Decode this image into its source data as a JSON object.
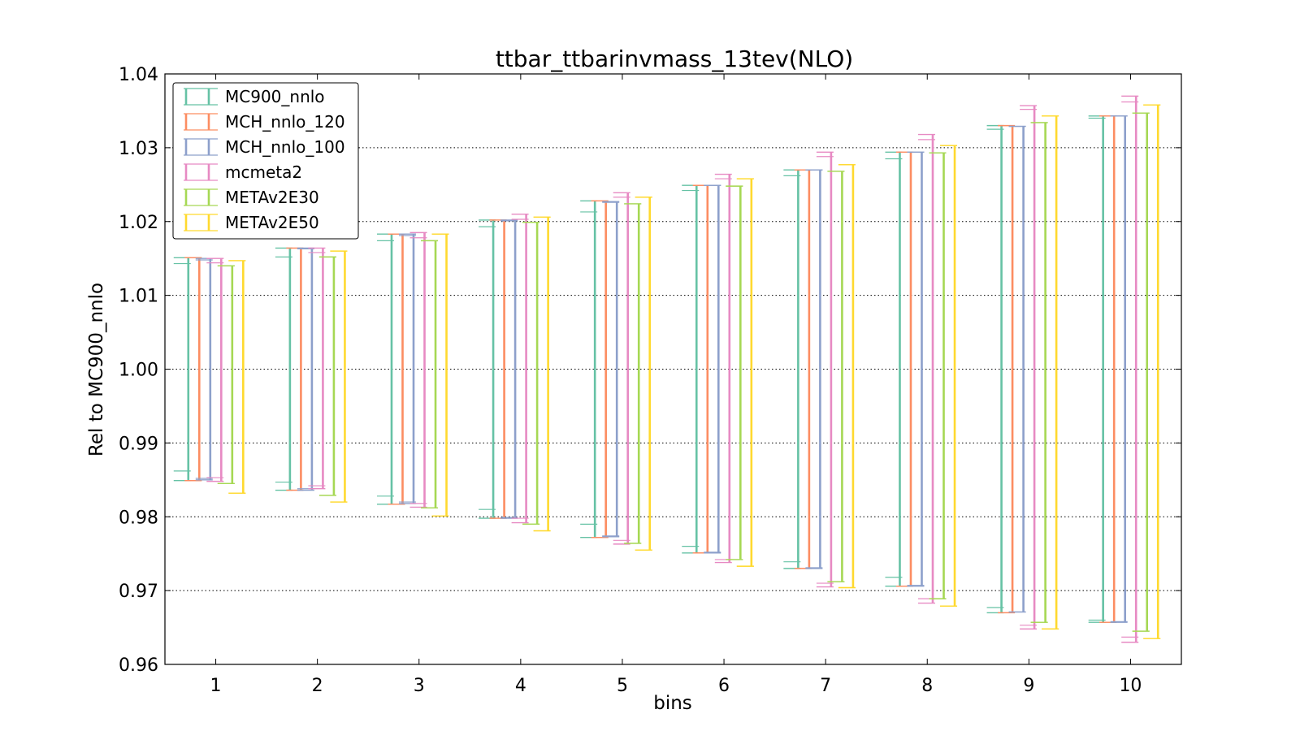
{
  "chart_data": {
    "type": "errorbar",
    "title": "ttbar_ttbarinvmass_13tev(NLO)",
    "xlabel": "bins",
    "ylabel": "Rel to MC900_nnlo",
    "x": [
      1,
      2,
      3,
      4,
      5,
      6,
      7,
      8,
      9,
      10
    ],
    "xlim": [
      0.5,
      10.5
    ],
    "ylim": [
      0.96,
      1.04
    ],
    "yticks": [
      "0.96",
      "0.97",
      "0.98",
      "0.99",
      "1.00",
      "1.01",
      "1.02",
      "1.03",
      "1.04"
    ],
    "grid": "horizontal dotted",
    "legend_position": "top-left",
    "series": [
      {
        "name": "MC900_nnlo",
        "color": "#66c2a5",
        "upper": [
          1.0151,
          1.0164,
          1.0183,
          1.0202,
          1.0228,
          1.0249,
          1.027,
          1.0294,
          1.033,
          1.0343
        ],
        "lower": [
          0.9849,
          0.9836,
          0.9817,
          0.9798,
          0.9772,
          0.9751,
          0.973,
          0.9706,
          0.967,
          0.9657
        ],
        "inner_upper": [
          1.0143,
          1.0152,
          1.0174,
          1.0193,
          1.0213,
          1.0242,
          1.0262,
          1.0285,
          1.0325,
          1.034
        ],
        "inner_lower": [
          0.9862,
          0.9847,
          0.9828,
          0.981,
          0.979,
          0.976,
          0.9739,
          0.9718,
          0.9677,
          0.966
        ]
      },
      {
        "name": "MCH_nnlo_120",
        "color": "#fc8d62",
        "upper": [
          1.0151,
          1.0164,
          1.0183,
          1.0202,
          1.0228,
          1.0249,
          1.027,
          1.0294,
          1.033,
          1.0343
        ],
        "lower": [
          0.9849,
          0.9836,
          0.9817,
          0.9798,
          0.9772,
          0.9751,
          0.973,
          0.9706,
          0.967,
          0.9657
        ],
        "inner_upper": [
          1.0151,
          1.0164,
          1.0183,
          1.0202,
          1.0228,
          1.0249,
          1.027,
          1.0294,
          1.033,
          1.0343
        ],
        "inner_lower": [
          0.9849,
          0.9836,
          0.9817,
          0.9798,
          0.9772,
          0.9751,
          0.973,
          0.9706,
          0.967,
          0.9657
        ]
      },
      {
        "name": "MCH_nnlo_100",
        "color": "#8da0cb",
        "upper": [
          1.015,
          1.0164,
          1.0183,
          1.0202,
          1.0227,
          1.0249,
          1.027,
          1.0294,
          1.0329,
          1.0343
        ],
        "lower": [
          0.985,
          0.9836,
          0.9818,
          0.9798,
          0.9773,
          0.9751,
          0.973,
          0.9706,
          0.9671,
          0.9657
        ],
        "inner_upper": [
          1.0148,
          1.0163,
          1.0181,
          1.0201,
          1.0226,
          1.0249,
          1.027,
          1.0294,
          1.0329,
          1.0343
        ],
        "inner_lower": [
          0.9852,
          0.9838,
          0.982,
          0.9799,
          0.9774,
          0.9752,
          0.9731,
          0.9707,
          0.9671,
          0.9658
        ]
      },
      {
        "name": "mcmeta2",
        "color": "#e78ac3",
        "upper": [
          1.015,
          1.0164,
          1.0185,
          1.021,
          1.0239,
          1.0264,
          1.0294,
          1.0318,
          1.0357,
          1.037
        ],
        "lower": [
          0.9848,
          0.9838,
          0.9813,
          0.9792,
          0.9763,
          0.9738,
          0.9705,
          0.9683,
          0.9648,
          0.963
        ],
        "inner_upper": [
          1.0144,
          1.0158,
          1.0178,
          1.0203,
          1.0233,
          1.0258,
          1.0288,
          1.0311,
          1.0352,
          1.0362
        ],
        "inner_lower": [
          0.9853,
          0.9842,
          0.9818,
          0.9798,
          0.9768,
          0.9742,
          0.971,
          0.9689,
          0.9653,
          0.9637
        ]
      },
      {
        "name": "METAv2E30",
        "color": "#a6d854",
        "upper": [
          1.014,
          1.0152,
          1.0174,
          1.0199,
          1.0224,
          1.0248,
          1.0268,
          1.0293,
          1.0334,
          1.0347
        ],
        "lower": [
          0.9845,
          0.9829,
          0.9812,
          0.979,
          0.9764,
          0.9742,
          0.9712,
          0.9689,
          0.9657,
          0.9645
        ],
        "inner_upper": [
          1.014,
          1.0152,
          1.0174,
          1.0199,
          1.0224,
          1.0248,
          1.0268,
          1.0293,
          1.0334,
          1.0347
        ],
        "inner_lower": [
          0.9845,
          0.9829,
          0.9812,
          0.979,
          0.9764,
          0.9742,
          0.9712,
          0.9689,
          0.9657,
          0.9645
        ]
      },
      {
        "name": "METAv2E50",
        "color": "#ffd92f",
        "upper": [
          1.0147,
          1.016,
          1.0183,
          1.0206,
          1.0233,
          1.0258,
          1.0277,
          1.0303,
          1.0343,
          1.0358
        ],
        "lower": [
          0.9832,
          0.982,
          0.9801,
          0.9781,
          0.9755,
          0.9733,
          0.9704,
          0.9679,
          0.9648,
          0.9635
        ],
        "inner_upper": [
          1.0147,
          1.016,
          1.0183,
          1.0206,
          1.0233,
          1.0258,
          1.0277,
          1.0303,
          1.0343,
          1.0358
        ],
        "inner_lower": [
          0.9832,
          0.982,
          0.9801,
          0.9781,
          0.9755,
          0.9733,
          0.9704,
          0.9679,
          0.9648,
          0.9635
        ]
      }
    ]
  }
}
